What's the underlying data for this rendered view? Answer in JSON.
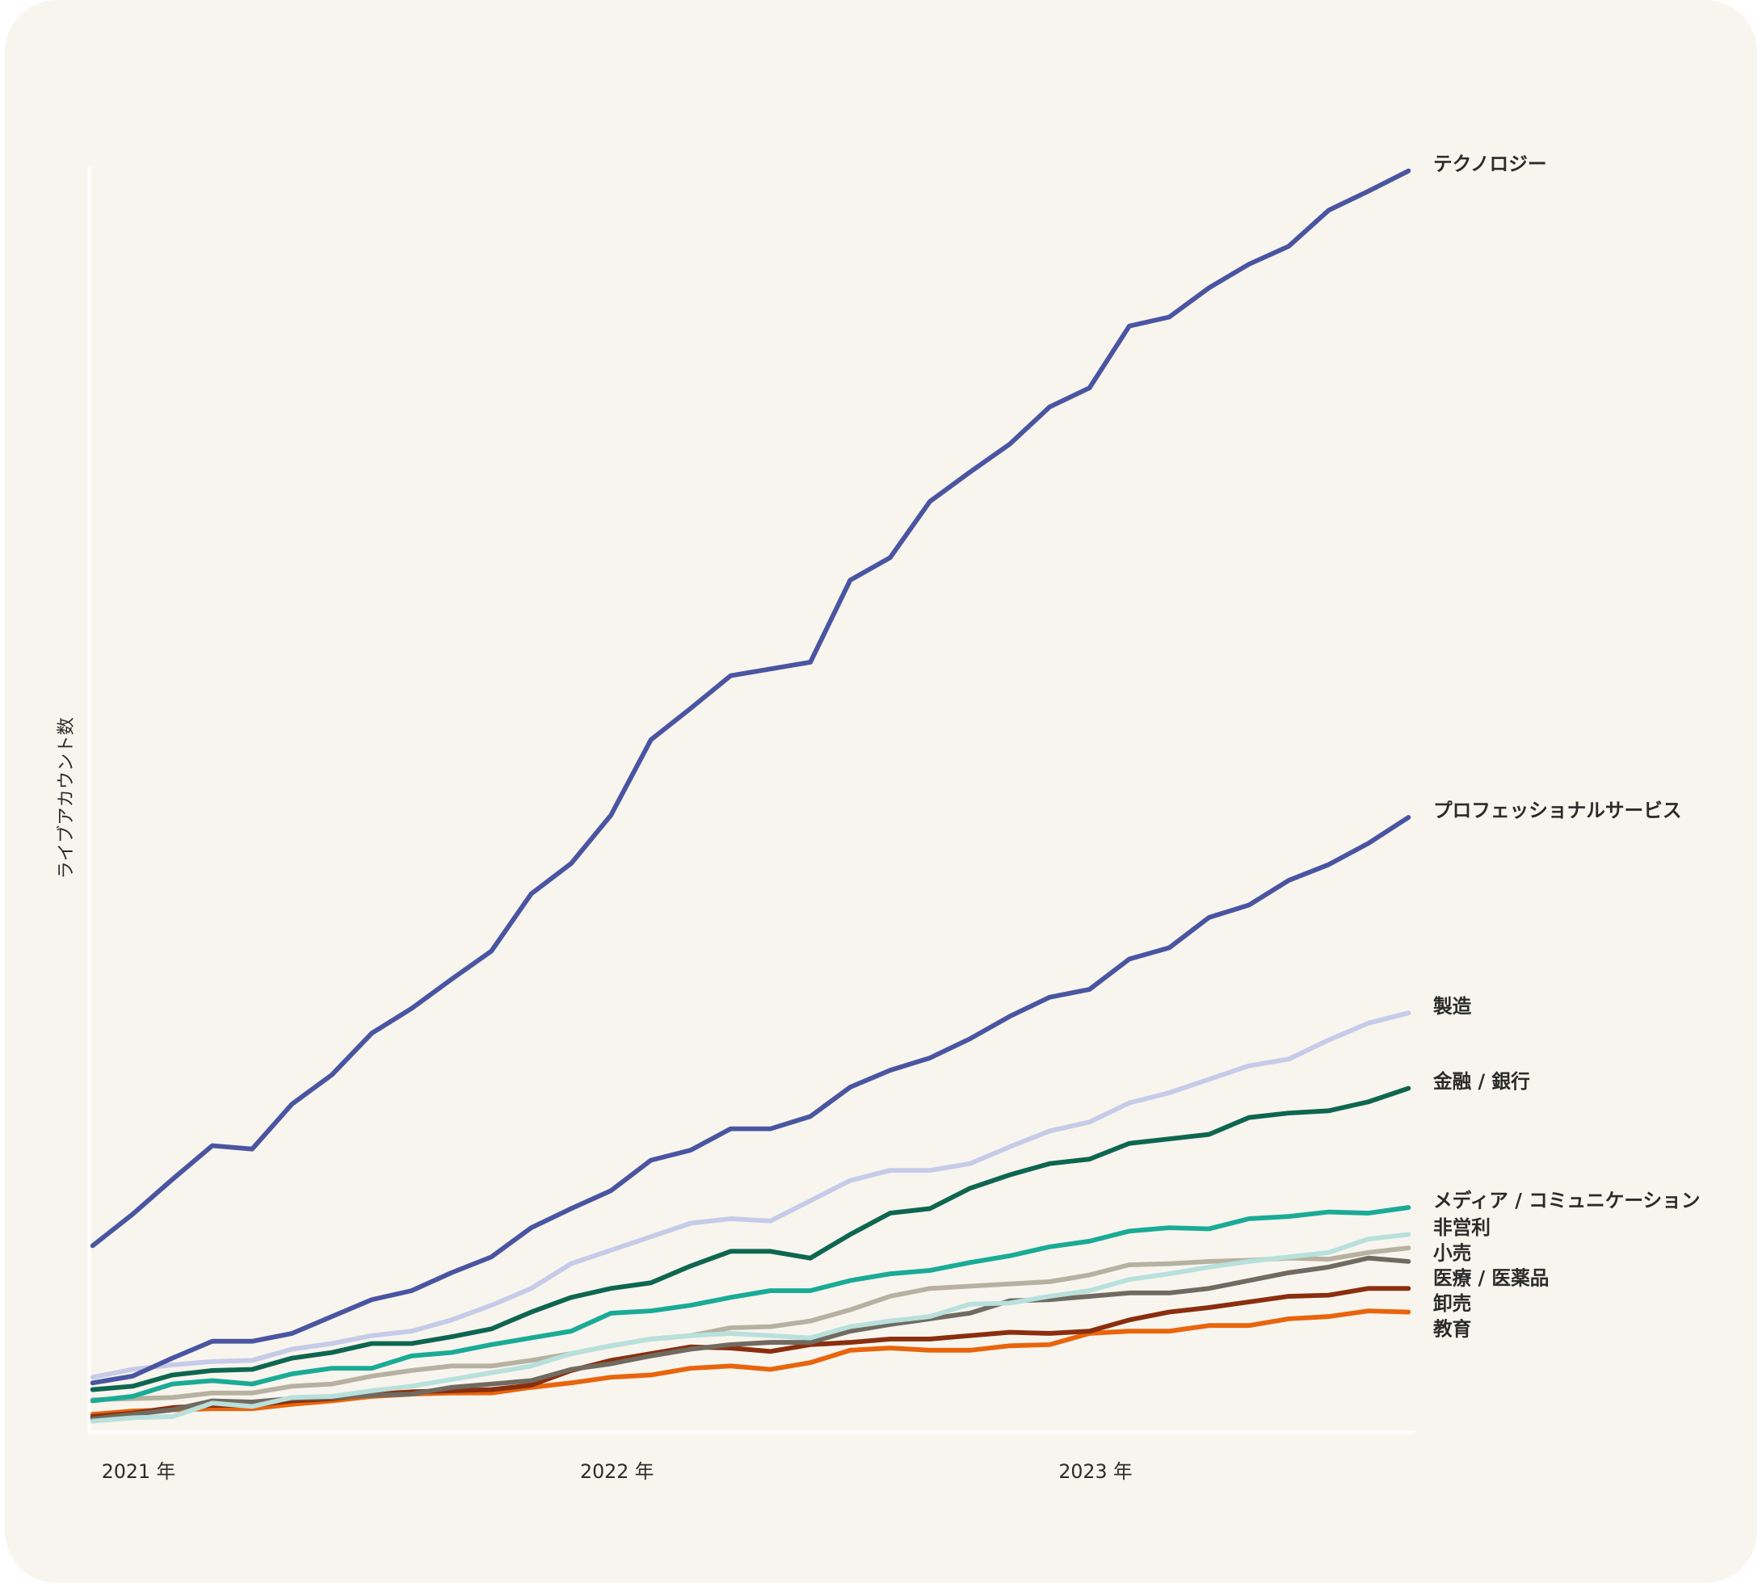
{
  "chart_data": {
    "type": "line",
    "y_label": "ライブアカウント数",
    "categories": [
      "2021 年",
      null,
      null,
      null,
      null,
      null,
      null,
      null,
      null,
      null,
      null,
      null,
      "2022 年",
      null,
      null,
      null,
      null,
      null,
      null,
      null,
      null,
      null,
      null,
      null,
      "2023 年",
      null,
      null,
      null,
      null,
      null,
      null,
      null,
      null,
      null
    ],
    "ylim": [
      0,
      1125
    ],
    "series": [
      {
        "name": "テクノロジー",
        "color": "#4a55a2",
        "values": [
          165,
          193,
          224,
          254,
          251,
          291,
          317,
          354,
          376,
          402,
          427,
          478,
          505,
          548,
          615,
          643,
          672,
          678,
          684,
          757,
          777,
          827,
          853,
          878,
          911,
          928,
          983,
          991,
          1017,
          1038,
          1054,
          1086,
          1103,
          1121
        ]
      },
      {
        "name": "プロフェッショナルサービス",
        "color": "#4a55a2",
        "values": [
          43,
          49,
          65,
          80,
          80,
          87,
          102,
          117,
          125,
          141,
          155,
          181,
          198,
          214,
          241,
          250,
          269,
          269,
          280,
          306,
          321,
          332,
          349,
          369,
          386,
          393,
          420,
          430,
          457,
          468,
          490,
          504,
          523,
          546
        ]
      },
      {
        "name": "製造",
        "color": "#c5cbe8",
        "values": [
          48,
          55,
          59,
          62,
          63,
          73,
          78,
          85,
          89,
          99,
          112,
          127,
          149,
          161,
          173,
          185,
          189,
          187,
          205,
          223,
          232,
          232,
          238,
          253,
          267,
          275,
          292,
          301,
          313,
          325,
          331,
          348,
          363,
          372
        ]
      },
      {
        "name": "金融 / 銀行",
        "color": "#0e6650",
        "values": [
          37,
          40,
          50,
          54,
          55,
          65,
          70,
          78,
          78,
          84,
          91,
          106,
          119,
          127,
          132,
          147,
          160,
          160,
          154,
          175,
          194,
          198,
          216,
          228,
          238,
          242,
          256,
          260,
          264,
          279,
          283,
          285,
          293,
          305
        ]
      },
      {
        "name": "メディア / コミュニケーション",
        "color": "#1aab96",
        "values": [
          27,
          31,
          42,
          45,
          42,
          51,
          56,
          56,
          67,
          70,
          77,
          83,
          89,
          105,
          107,
          112,
          119,
          125,
          125,
          134,
          140,
          143,
          150,
          156,
          164,
          169,
          178,
          181,
          180,
          189,
          191,
          195,
          194,
          199
        ]
      },
      {
        "name": "非営利",
        "color": "#b8e0dc",
        "values": [
          9,
          12,
          13,
          25,
          22,
          30,
          31,
          36,
          40,
          46,
          52,
          58,
          69,
          76,
          82,
          85,
          87,
          85,
          83,
          93,
          98,
          102,
          113,
          114,
          120,
          125,
          135,
          140,
          146,
          151,
          155,
          159,
          171,
          175
        ]
      },
      {
        "name": "小売",
        "color": "#b6b1a0",
        "values": [
          28,
          29,
          30,
          34,
          34,
          40,
          42,
          49,
          54,
          58,
          58,
          63,
          69,
          76,
          82,
          85,
          92,
          93,
          98,
          108,
          120,
          127,
          129,
          131,
          133,
          139,
          148,
          149,
          151,
          152,
          154,
          153,
          159,
          163
        ]
      },
      {
        "name": "医療 / 医薬品",
        "color": "#716a60",
        "values": [
          11,
          15,
          19,
          27,
          26,
          29,
          30,
          32,
          33,
          39,
          42,
          45,
          55,
          60,
          67,
          73,
          77,
          79,
          79,
          89,
          95,
          100,
          105,
          116,
          117,
          120,
          123,
          123,
          127,
          134,
          141,
          146,
          154,
          151
        ]
      },
      {
        "name": "卸売",
        "color": "#8a2e0e",
        "values": [
          13,
          16,
          21,
          23,
          23,
          27,
          29,
          33,
          35,
          36,
          37,
          41,
          54,
          63,
          69,
          75,
          74,
          71,
          77,
          79,
          82,
          82,
          85,
          88,
          87,
          89,
          99,
          106,
          110,
          115,
          120,
          121,
          127,
          127
        ]
      },
      {
        "name": "教育",
        "color": "#e8650d",
        "values": [
          15,
          18,
          19,
          20,
          20,
          24,
          27,
          31,
          33,
          34,
          34,
          39,
          43,
          48,
          50,
          56,
          58,
          55,
          61,
          72,
          74,
          72,
          72,
          76,
          77,
          87,
          89,
          89,
          94,
          94,
          100,
          102,
          107,
          106
        ]
      }
    ]
  }
}
